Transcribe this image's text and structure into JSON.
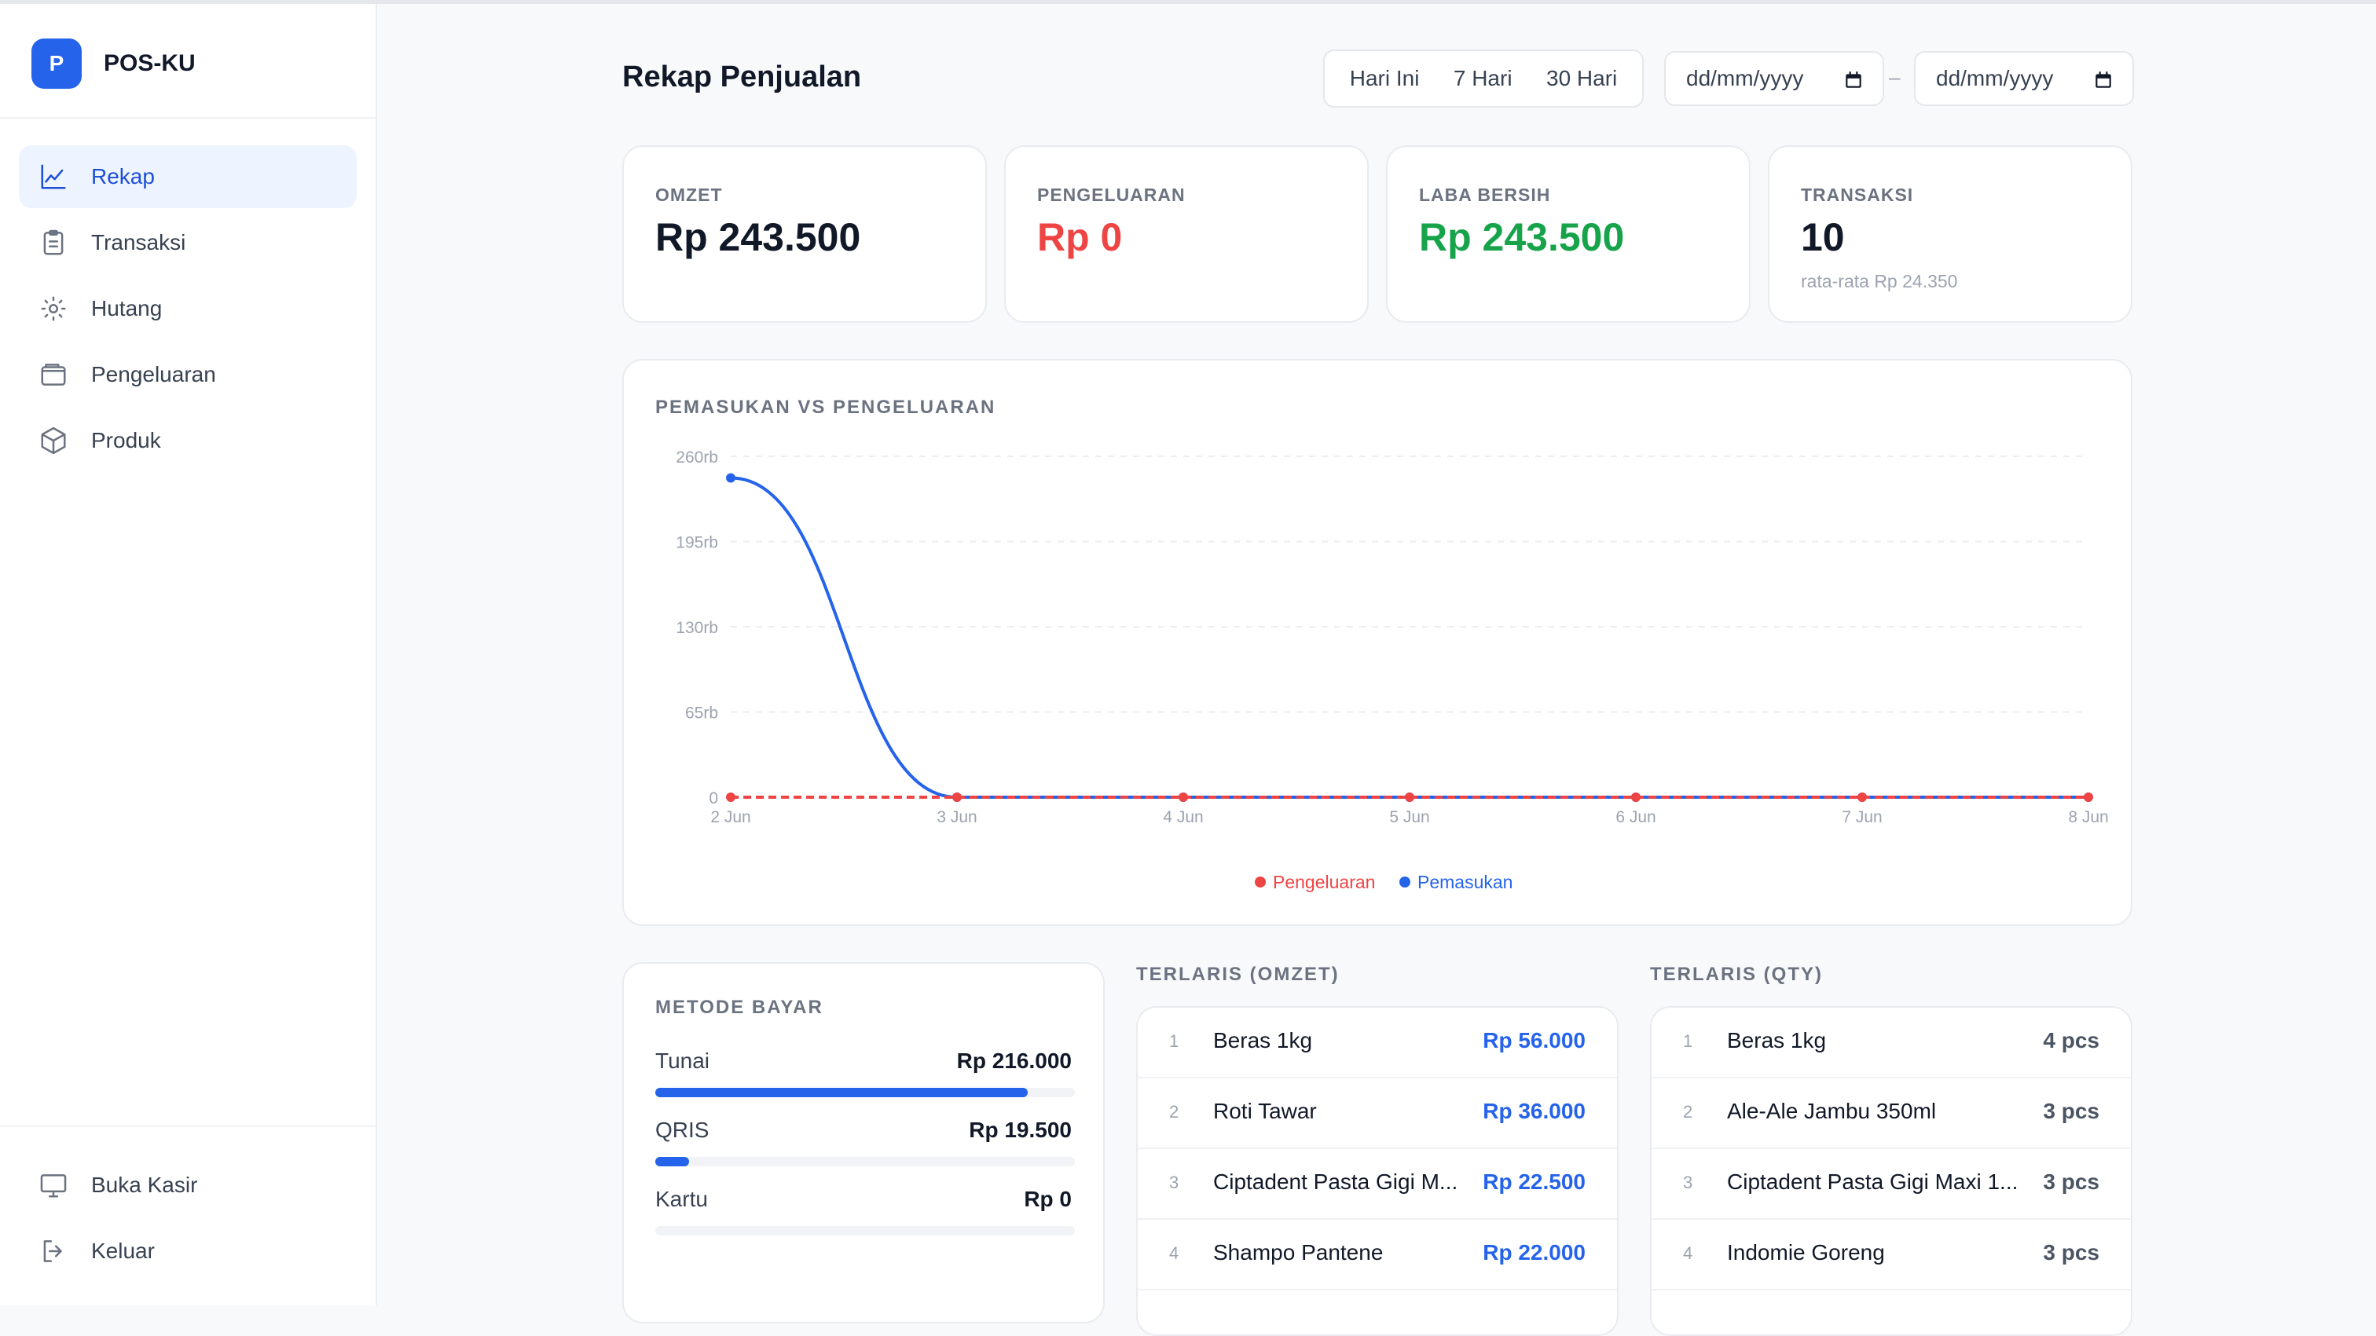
{
  "brand": {
    "logo_letter": "P",
    "name": "POS-KU"
  },
  "nav": [
    {
      "label": "Rekap",
      "icon": "chart-line-icon",
      "active": true
    },
    {
      "label": "Transaksi",
      "icon": "clipboard-icon",
      "active": false
    },
    {
      "label": "Hutang",
      "icon": "sun-icon",
      "active": false
    },
    {
      "label": "Pengeluaran",
      "icon": "wallet-icon",
      "active": false
    },
    {
      "label": "Produk",
      "icon": "box-icon",
      "active": false
    }
  ],
  "footer_nav": [
    {
      "label": "Buka Kasir",
      "icon": "monitor-icon"
    },
    {
      "label": "Keluar",
      "icon": "logout-icon"
    }
  ],
  "header": {
    "title": "Rekap Penjualan",
    "ranges": [
      "Hari Ini",
      "7 Hari",
      "30 Hari"
    ],
    "date_from_placeholder": "dd/mm/yyyy",
    "date_to_placeholder": "dd/mm/yyyy",
    "date_separator": "–"
  },
  "stats": [
    {
      "label": "OMZET",
      "value": "Rp 243.500",
      "sub": ""
    },
    {
      "label": "PENGELUARAN",
      "value": "Rp 0",
      "sub": ""
    },
    {
      "label": "LABA BERSIH",
      "value": "Rp 243.500",
      "sub": ""
    },
    {
      "label": "TRANSAKSI",
      "value": "10",
      "sub": "rata-rata Rp 24.350"
    }
  ],
  "chart_section_label": "PEMASUKAN VS PENGELUARAN",
  "chart_data": {
    "type": "line",
    "title": "PEMASUKAN VS PENGELUARAN",
    "x": [
      "2 Jun",
      "3 Jun",
      "4 Jun",
      "5 Jun",
      "6 Jun",
      "7 Jun",
      "8 Jun"
    ],
    "y_ticks": [
      "0",
      "65rb",
      "130rb",
      "195rb",
      "260rb"
    ],
    "ylim": [
      0,
      260000
    ],
    "grid": true,
    "legend_position": "bottom",
    "series": [
      {
        "name": "Pengeluaran",
        "color": "#ef4444",
        "dashed": true,
        "values": [
          0,
          0,
          0,
          0,
          0,
          0,
          0
        ]
      },
      {
        "name": "Pemasukan",
        "color": "#2563eb",
        "dashed": false,
        "values": [
          243500,
          0,
          0,
          0,
          0,
          0,
          0
        ]
      }
    ]
  },
  "payment": {
    "label": "METODE BAYAR",
    "rows": [
      {
        "label": "Tunai",
        "value": "Rp 216.000",
        "fraction": 0.887
      },
      {
        "label": "QRIS",
        "value": "Rp 19.500",
        "fraction": 0.08
      },
      {
        "label": "Kartu",
        "value": "Rp 0",
        "fraction": 0
      }
    ]
  },
  "top_omzet": {
    "label": "TERLARIS (OMZET)",
    "items": [
      {
        "rank": "1",
        "name": "Beras 1kg",
        "value": "Rp 56.000"
      },
      {
        "rank": "2",
        "name": "Roti Tawar",
        "value": "Rp 36.000"
      },
      {
        "rank": "3",
        "name": "Ciptadent Pasta Gigi M...",
        "value": "Rp 22.500"
      },
      {
        "rank": "4",
        "name": "Shampo Pantene",
        "value": "Rp 22.000"
      }
    ]
  },
  "top_qty": {
    "label": "TERLARIS (QTY)",
    "items": [
      {
        "rank": "1",
        "name": "Beras 1kg",
        "value": "4 pcs"
      },
      {
        "rank": "2",
        "name": "Ale-Ale Jambu 350ml",
        "value": "3 pcs"
      },
      {
        "rank": "3",
        "name": "Ciptadent Pasta Gigi Maxi 1...",
        "value": "3 pcs"
      },
      {
        "rank": "4",
        "name": "Indomie Goreng",
        "value": "3 pcs"
      }
    ]
  }
}
